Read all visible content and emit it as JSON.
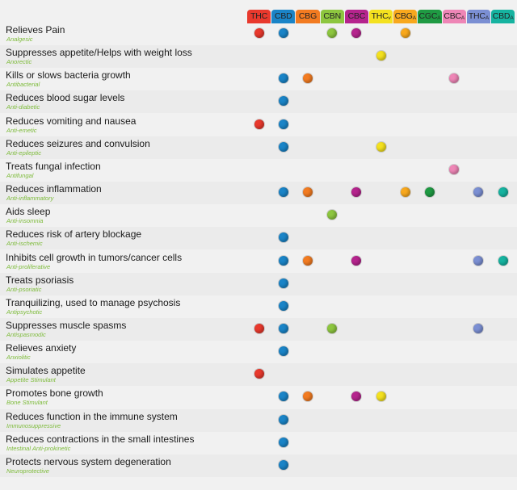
{
  "chart_data": {
    "type": "table",
    "columns": [
      {
        "key": "THC",
        "label": "THC",
        "suffix": "",
        "color": "#e8392d"
      },
      {
        "key": "CBD",
        "label": "CBD",
        "suffix": "",
        "color": "#1a84c7"
      },
      {
        "key": "CBG",
        "label": "CBG",
        "suffix": "",
        "color": "#f27b21"
      },
      {
        "key": "CBN",
        "label": "CBN",
        "suffix": "",
        "color": "#8dc63f"
      },
      {
        "key": "CBC",
        "label": "CBC",
        "suffix": "",
        "color": "#b5248d"
      },
      {
        "key": "THCv",
        "label": "THC",
        "suffix": "v",
        "color": "#f4e11f"
      },
      {
        "key": "CBGA",
        "label": "CBG",
        "suffix": "A",
        "color": "#f8a81d"
      },
      {
        "key": "CGCA",
        "label": "CGC",
        "suffix": "A",
        "color": "#1f9a43"
      },
      {
        "key": "CBCA",
        "label": "CBC",
        "suffix": "A",
        "color": "#ee86b6"
      },
      {
        "key": "THCA",
        "label": "THC",
        "suffix": "A",
        "color": "#7b8fd3"
      },
      {
        "key": "CBDA",
        "label": "CBD",
        "suffix": "A",
        "color": "#16b3a0"
      }
    ],
    "rows": [
      {
        "label": "Relieves Pain",
        "subtitle": "Analgesic",
        "marks": [
          "THC",
          "CBD",
          "CBN",
          "CBC",
          "CBGA"
        ]
      },
      {
        "label": "Suppresses appetite/Helps with weight loss",
        "subtitle": "Anorectic",
        "marks": [
          "THCv"
        ]
      },
      {
        "label": "Kills or slows bacteria growth",
        "subtitle": "Antibacterial",
        "marks": [
          "CBD",
          "CBG",
          "CBCA"
        ]
      },
      {
        "label": "Reduces blood sugar levels",
        "subtitle": "Anti-diabetic",
        "marks": [
          "CBD"
        ]
      },
      {
        "label": "Reduces vomiting and nausea",
        "subtitle": "Anti-emetic",
        "marks": [
          "THC",
          "CBD"
        ]
      },
      {
        "label": "Reduces seizures and convulsion",
        "subtitle": "Anti-epileptic",
        "marks": [
          "CBD",
          "THCv"
        ]
      },
      {
        "label": "Treats fungal infection",
        "subtitle": "Antifungal",
        "marks": [
          "CBCA"
        ]
      },
      {
        "label": "Reduces inflammation",
        "subtitle": "Anti-inflammatory",
        "marks": [
          "CBD",
          "CBG",
          "CBC",
          "CBGA",
          "CGCA",
          "THCA",
          "CBDA"
        ]
      },
      {
        "label": "Aids sleep",
        "subtitle": "Anti-insomnia",
        "marks": [
          "CBN"
        ]
      },
      {
        "label": "Reduces risk of artery blockage",
        "subtitle": "Anti-ischemic",
        "marks": [
          "CBD"
        ]
      },
      {
        "label": "Inhibits cell growth in tumors/cancer cells",
        "subtitle": "Anti-proliferative",
        "marks": [
          "CBD",
          "CBG",
          "CBC",
          "THCA",
          "CBDA"
        ]
      },
      {
        "label": "Treats psoriasis",
        "subtitle": "Anti-psoriatic",
        "marks": [
          "CBD"
        ]
      },
      {
        "label": "Tranquilizing, used to manage psychosis",
        "subtitle": "Antipsychotic",
        "marks": [
          "CBD"
        ]
      },
      {
        "label": "Suppresses muscle spasms",
        "subtitle": "Antispasmodic",
        "marks": [
          "THC",
          "CBD",
          "CBN",
          "THCA"
        ]
      },
      {
        "label": "Relieves anxiety",
        "subtitle": "Anxiolitic",
        "marks": [
          "CBD"
        ]
      },
      {
        "label": "Simulates appetite",
        "subtitle": "Appetite Stimulant",
        "marks": [
          "THC"
        ]
      },
      {
        "label": "Promotes bone growth",
        "subtitle": "Bone Stimulant",
        "marks": [
          "CBD",
          "CBG",
          "CBC",
          "THCv"
        ]
      },
      {
        "label": "Reduces function in the immune system",
        "subtitle": "Immunosuppressive",
        "marks": [
          "CBD"
        ]
      },
      {
        "label": "Reduces contractions in the small intestines",
        "subtitle": "Intestinal Anti-prokinetic",
        "marks": [
          "CBD"
        ]
      },
      {
        "label": "Protects nervous system degeneration",
        "subtitle": "Neuroprotective",
        "marks": [
          "CBD"
        ]
      }
    ]
  }
}
